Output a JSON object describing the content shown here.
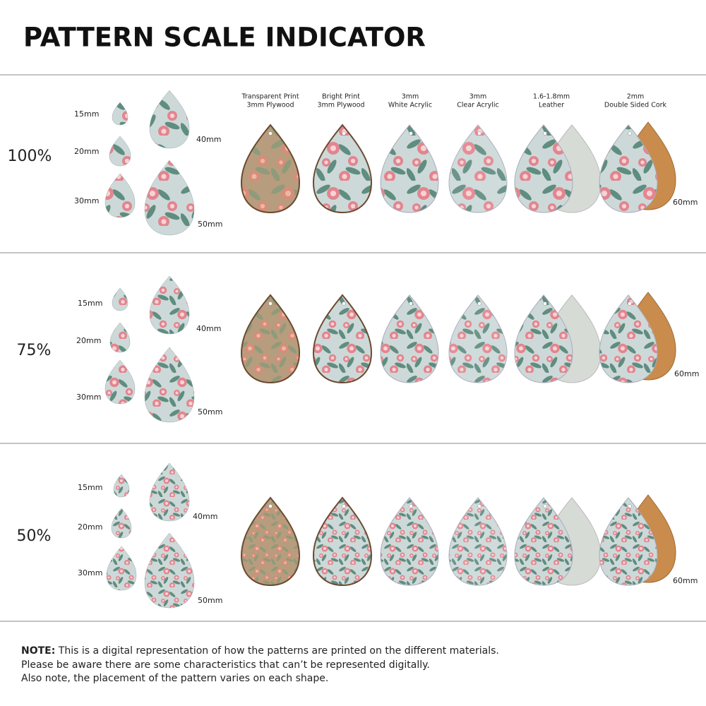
{
  "header": {
    "title": "PATTERN SCALE INDICATOR"
  },
  "materials": [
    [
      "Transparent Print",
      "3mm Plywood"
    ],
    [
      "Bright Print",
      "3mm Plywood"
    ],
    [
      "3mm",
      "White Acrylic"
    ],
    [
      "3mm",
      "Clear Acrylic"
    ],
    [
      "1.6-1.8mm",
      "Leather"
    ],
    [
      "2mm",
      "Double Sided Cork"
    ]
  ],
  "rows": [
    {
      "scale": "100%",
      "sizes": [
        "15mm",
        "20mm",
        "30mm",
        "40mm",
        "50mm",
        "60mm"
      ]
    },
    {
      "scale": "75%",
      "sizes": [
        "15mm",
        "20mm",
        "30mm",
        "40mm",
        "50mm",
        "60mm"
      ]
    },
    {
      "scale": "50%",
      "sizes": [
        "15mm",
        "20mm",
        "30mm",
        "40mm",
        "50mm",
        "60mm"
      ]
    }
  ],
  "note": {
    "label": "NOTE:",
    "lines": [
      "This is a digital representation of how the patterns are printed on the different materials.",
      "Please be aware there are some characteristics that can’t be represented digitally.",
      "Also note, the placement of the pattern varies on each shape."
    ]
  }
}
